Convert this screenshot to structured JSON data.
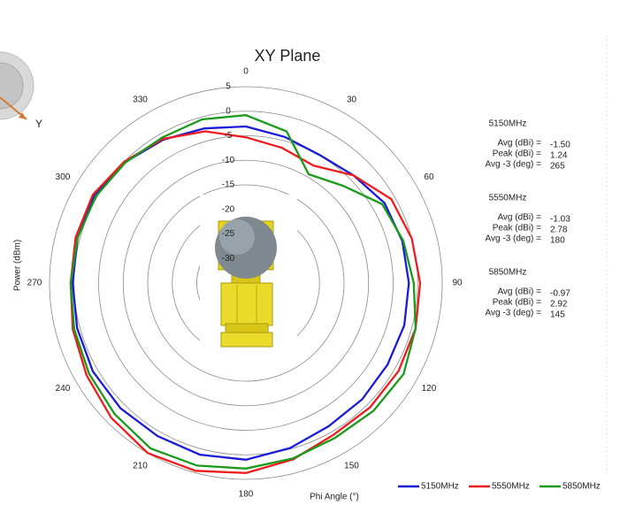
{
  "chart_data": {
    "type": "polar_line",
    "title": "XY Plane",
    "radial_label": "Power (dBm)",
    "angle_label": "Phi  Angle (°)",
    "theta": [
      0,
      15,
      30,
      45,
      60,
      75,
      90,
      105,
      120,
      135,
      150,
      165,
      180,
      195,
      210,
      225,
      240,
      255,
      270,
      285,
      300,
      315,
      330,
      345
    ],
    "rlim": [
      -35,
      5
    ],
    "rticks": [
      5,
      0,
      -5,
      -10,
      -15,
      -20,
      -25,
      -30
    ],
    "angle_ticks": [
      0,
      30,
      60,
      90,
      120,
      150,
      180,
      210,
      240,
      270,
      300,
      330
    ],
    "series": [
      {
        "name": "5150MHz",
        "color": "#1a1ad8",
        "values": [
          -3.1,
          -4.2,
          -4.9,
          -4.0,
          -2.4,
          -2.0,
          -1.8,
          -1.6,
          -1.7,
          -1.5,
          -1.3,
          -0.2,
          1.0,
          1.2,
          1.0,
          1.1,
          1.0,
          0.6,
          0.3,
          0.5,
          0.7,
          -0.2,
          -1.3,
          -2.4
        ]
      },
      {
        "name": "5550MHz",
        "color": "#ee1c1c",
        "values": [
          -5.3,
          -6.5,
          -7.4,
          -4.0,
          -0.8,
          0.0,
          0.5,
          0.8,
          0.9,
          0.8,
          0.7,
          2.2,
          3.7,
          4.6,
          5.0,
          3.8,
          2.5,
          1.5,
          0.7,
          0.9,
          1.0,
          0.0,
          -1.1,
          -3.0
        ]
      },
      {
        "name": "5850MHz",
        "color": "#1a9a1a",
        "values": [
          -0.8,
          -3.0,
          -9.4,
          -7.0,
          -2.9,
          -1.8,
          -0.8,
          0.8,
          2.1,
          1.8,
          1.4,
          2.0,
          2.8,
          3.5,
          3.9,
          2.8,
          1.9,
          1.2,
          0.7,
          0.5,
          0.3,
          -0.3,
          -0.8,
          -0.5
        ]
      }
    ],
    "stats": [
      {
        "name": "5150MHz",
        "rows": [
          {
            "label": "Avg (dBi) =",
            "value": "-1.50"
          },
          {
            "label": "Peak (dBi) =",
            "value": "1.24"
          },
          {
            "label": "Avg -3 (deg) =",
            "value": "265"
          }
        ]
      },
      {
        "name": "5550MHz",
        "rows": [
          {
            "label": "Avg (dBi) =",
            "value": "-1.03"
          },
          {
            "label": "Peak (dBi) =",
            "value": "2.78"
          },
          {
            "label": "Avg -3 (deg) =",
            "value": "180"
          }
        ]
      },
      {
        "name": "5850MHz",
        "rows": [
          {
            "label": "Avg (dBi) =",
            "value": "-0.97"
          },
          {
            "label": "Peak (dBi) =",
            "value": "2.92"
          },
          {
            "label": "Avg -3 (deg) =",
            "value": "145"
          }
        ]
      }
    ],
    "axis_icon_label": "Y"
  }
}
